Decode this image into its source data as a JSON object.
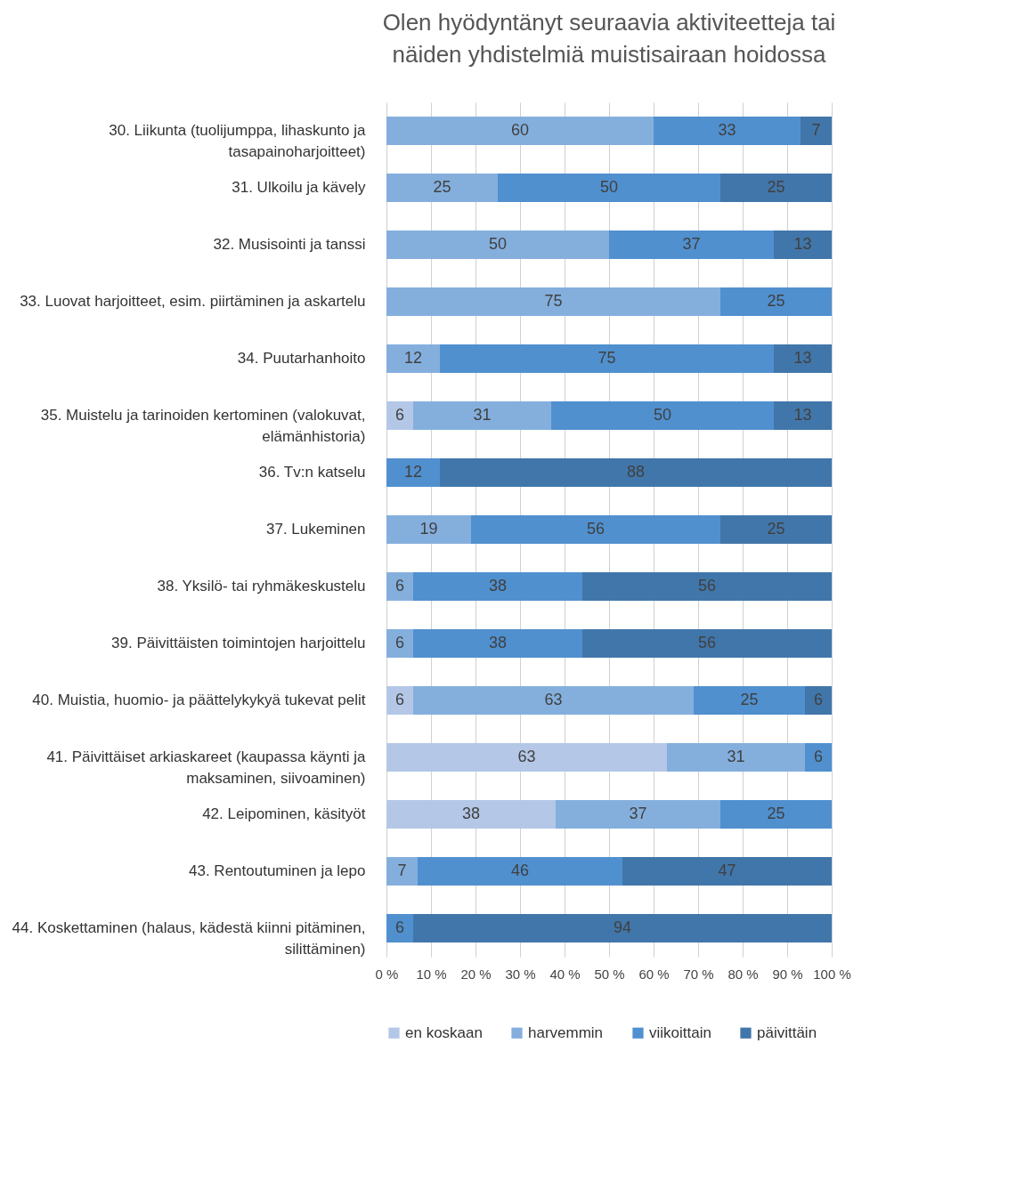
{
  "chart_data": {
    "type": "bar",
    "title": "Olen hyödyntänyt seuraavia aktiviteetteja tai näiden yhdistelmiä muistisairaan hoidossa",
    "orientation": "horizontal",
    "stacked": true,
    "data_labels": true,
    "grid": "x",
    "legend": "bottom",
    "categories": [
      "30. Liikunta (tuolijumppa, lihaskunto ja tasapainoharjoitteet)",
      "31. Ulkoilu ja kävely",
      "32. Musisointi ja tanssi",
      "33. Luovat harjoitteet, esim. piirtäminen ja askartelu",
      "34. Puutarhanhoito",
      "35. Muistelu ja tarinoiden kertominen (valokuvat, elämänhistoria)",
      "36. Tv:n katselu",
      "37. Lukeminen",
      "38. Yksilö- tai ryhmäkeskustelu",
      "39. Päivittäisten toimintojen harjoittelu",
      "40. Muistia, huomio- ja päättelykykyä tukevat pelit",
      "41. Päivittäiset arkiaskareet (kaupassa käynti ja maksaminen, siivoaminen)",
      "42. Leipominen, käsityöt",
      "43. Rentoutuminen ja lepo",
      "44. Koskettaminen (halaus, kädestä kiinni pitäminen, silittäminen)"
    ],
    "xlim": [
      0,
      100
    ],
    "xticks": [
      {
        "value": 0,
        "label": "0 %"
      },
      {
        "value": 10,
        "label": "10 %"
      },
      {
        "value": 20,
        "label": "20 %"
      },
      {
        "value": 30,
        "label": "30 %"
      },
      {
        "value": 40,
        "label": "40 %"
      },
      {
        "value": 50,
        "label": "50 %"
      },
      {
        "value": 60,
        "label": "60 %"
      },
      {
        "value": 70,
        "label": "70 %"
      },
      {
        "value": 80,
        "label": "80 %"
      },
      {
        "value": 90,
        "label": "90 %"
      },
      {
        "value": 100,
        "label": "100 %"
      }
    ],
    "series": [
      {
        "name": "en koskaan",
        "color": "#b4c7e7",
        "values": [
          null,
          null,
          null,
          null,
          null,
          6,
          null,
          null,
          null,
          null,
          6,
          63,
          38,
          null,
          null
        ]
      },
      {
        "name": "harvemmin",
        "color": "#84afdd",
        "values": [
          60,
          25,
          50,
          75,
          12,
          31,
          null,
          19,
          6,
          6,
          63,
          31,
          37,
          7,
          null
        ]
      },
      {
        "name": "viikoittain",
        "color": "#5090cf",
        "values": [
          33,
          50,
          37,
          25,
          75,
          50,
          12,
          56,
          38,
          38,
          25,
          6,
          25,
          46,
          6
        ]
      },
      {
        "name": "päivittäin",
        "color": "#4176aa",
        "values": [
          7,
          25,
          13,
          null,
          13,
          13,
          88,
          25,
          56,
          56,
          6,
          null,
          null,
          47,
          94
        ]
      }
    ]
  }
}
